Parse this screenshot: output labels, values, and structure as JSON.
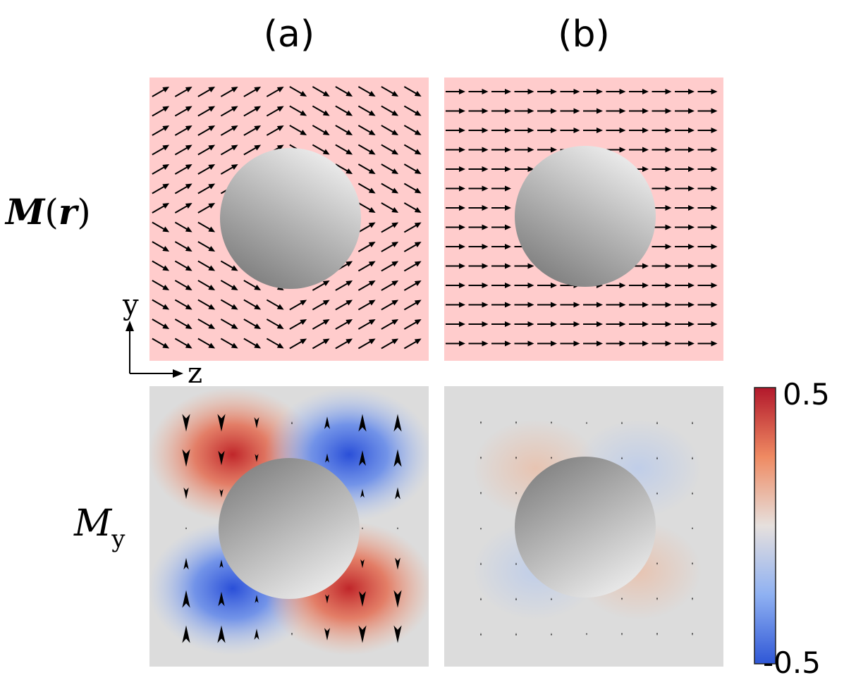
{
  "columns": [
    {
      "label": "(a)"
    },
    {
      "label": "(b)"
    }
  ],
  "rows": [
    {
      "label_main": "M",
      "label_paren_open": "(",
      "label_arg": "r",
      "label_paren_close": ")"
    },
    {
      "label_main": "M",
      "label_sub": "y"
    }
  ],
  "axes": {
    "y_label": "y",
    "z_label": "z"
  },
  "colorbar": {
    "max_label": "0.5",
    "min_label": "-0.5"
  },
  "colors": {
    "top_background": "#ffcccc",
    "bottom_background": "#dcdcdc",
    "arrow": "#000000",
    "colormap_max": "#b2182b",
    "colormap_min": "#2f57d6",
    "sphere_light": "#f0f0f0",
    "sphere_dark": "#7d7d7d"
  },
  "panels": {
    "top_a": {
      "field": "magnetization",
      "deflection": "strong"
    },
    "top_b": {
      "field": "magnetization",
      "deflection": "none"
    },
    "bottom_a": {
      "field": "My",
      "amplitude": "strong"
    },
    "bottom_b": {
      "field": "My",
      "amplitude": "weak"
    }
  }
}
